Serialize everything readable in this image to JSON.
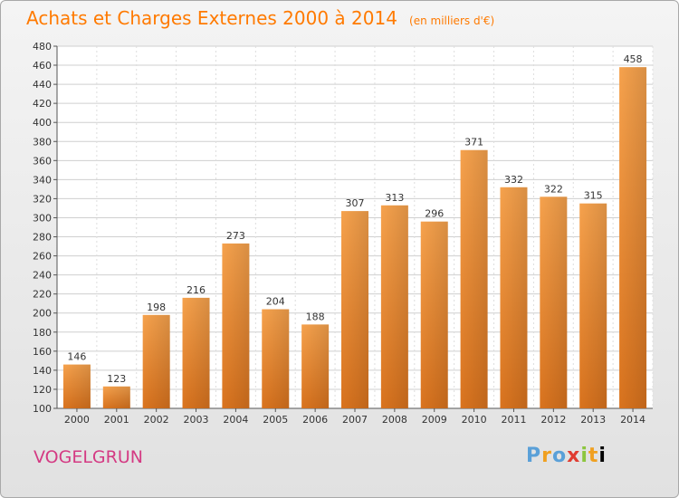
{
  "title": "Achats et Charges Externes 2000 à 2014",
  "unit": "(en milliers d'€)",
  "commune": "VOGELGRUN",
  "logo_text": "Proxiti",
  "colors": {
    "title": "#ff7a00",
    "commune": "#d43a83",
    "bar_light": "#f6a24d",
    "bar_dark": "#d9731e",
    "grid": "#cccccc"
  },
  "chart_data": {
    "type": "bar",
    "categories": [
      "2000",
      "2001",
      "2002",
      "2003",
      "2004",
      "2005",
      "2006",
      "2007",
      "2008",
      "2009",
      "2010",
      "2011",
      "2012",
      "2013",
      "2014"
    ],
    "values": [
      146,
      123,
      198,
      216,
      273,
      204,
      188,
      307,
      313,
      296,
      371,
      332,
      322,
      315,
      458
    ],
    "ylim": [
      100,
      480
    ],
    "yticks": [
      100,
      120,
      140,
      160,
      180,
      200,
      220,
      240,
      260,
      280,
      300,
      320,
      340,
      360,
      380,
      400,
      420,
      440,
      460,
      480
    ],
    "grid": true,
    "legend": "none"
  }
}
